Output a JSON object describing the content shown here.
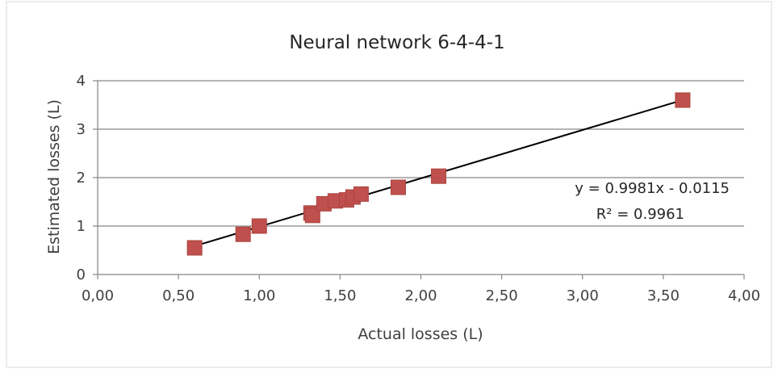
{
  "chart_data": {
    "type": "scatter",
    "title": "Neural network 6-4-4-1",
    "xlabel": "Actual losses (L)",
    "ylabel": "Estimated losses (L)",
    "xlim": [
      0,
      4
    ],
    "ylim": [
      0,
      4
    ],
    "x_ticks": [
      "0,00",
      "0,50",
      "1,00",
      "1,50",
      "2,00",
      "2,50",
      "3,00",
      "3,50",
      "4,00"
    ],
    "y_ticks": [
      "0",
      "1",
      "2",
      "3",
      "4"
    ],
    "grid": "horizontal",
    "legend": "none",
    "marker_color": "#C0504D",
    "trendline_color": "#000000",
    "points": [
      {
        "x": 0.6,
        "y": 0.55
      },
      {
        "x": 0.9,
        "y": 0.83
      },
      {
        "x": 1.0,
        "y": 1.0
      },
      {
        "x": 1.32,
        "y": 1.27
      },
      {
        "x": 1.33,
        "y": 1.22
      },
      {
        "x": 1.4,
        "y": 1.46
      },
      {
        "x": 1.47,
        "y": 1.52
      },
      {
        "x": 1.54,
        "y": 1.54
      },
      {
        "x": 1.58,
        "y": 1.6
      },
      {
        "x": 1.63,
        "y": 1.66
      },
      {
        "x": 1.86,
        "y": 1.8
      },
      {
        "x": 2.11,
        "y": 2.03
      },
      {
        "x": 3.62,
        "y": 3.6
      }
    ],
    "trendline": {
      "slope": 0.9981,
      "intercept": -0.0115,
      "x_range": [
        0.6,
        3.62
      ],
      "equation": "y = 0.9981x - 0.0115",
      "r2": "R² = 0.9961"
    }
  }
}
